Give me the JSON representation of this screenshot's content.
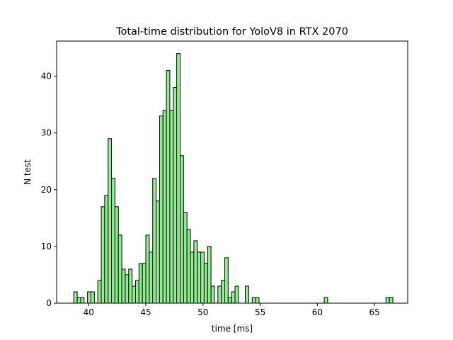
{
  "chart_data": {
    "type": "bar",
    "title": "Total-time distribution for YoloV8 in RTX 2070",
    "xlabel": "time [ms]",
    "ylabel": "N test",
    "xlim": [
      37.2,
      67.9
    ],
    "ylim": [
      0,
      46.2
    ],
    "grid": false,
    "xticks": [
      40,
      45,
      50,
      55,
      60,
      65
    ],
    "yticks": [
      0,
      10,
      20,
      30,
      40
    ],
    "bin_width": 0.3,
    "bar_color": "#90ee90",
    "edge_color": "#000000",
    "series": [
      {
        "x": [
          38.7,
          39.0,
          39.3,
          39.6,
          39.9,
          40.2,
          40.5,
          40.8,
          41.1,
          41.4,
          41.7,
          42.0,
          42.3,
          42.6,
          42.9,
          43.2,
          43.5,
          43.8,
          44.1,
          44.4,
          44.7,
          45.0,
          45.3,
          45.6,
          45.9,
          46.2,
          46.5,
          46.8,
          47.1,
          47.4,
          47.7,
          48.0,
          48.3,
          48.6,
          48.9,
          49.2,
          49.5,
          49.8,
          50.1,
          50.4,
          50.7,
          51.0,
          51.3,
          51.6,
          51.9,
          52.2,
          52.5,
          52.8,
          53.1,
          53.4,
          53.7,
          54.0,
          54.3,
          54.6,
          54.9,
          55.2,
          55.5,
          55.8,
          56.1,
          56.4,
          56.7,
          57.0,
          57.3,
          57.6,
          57.9,
          58.2,
          58.5,
          58.8,
          59.1,
          59.4,
          59.7,
          60.0,
          60.3,
          60.6,
          60.9,
          61.2,
          61.5,
          61.8,
          62.1,
          62.4,
          62.7,
          63.0,
          63.3,
          63.6,
          63.9,
          64.2,
          64.5,
          64.8,
          65.1,
          65.4,
          65.7,
          66.0,
          66.3
        ],
        "values": [
          2,
          1,
          1,
          0,
          2,
          2,
          0,
          4,
          17,
          19,
          29,
          22,
          17,
          12,
          6,
          5,
          6,
          3,
          4,
          7,
          7,
          12,
          9,
          22,
          18,
          33,
          34,
          41,
          34,
          38,
          44,
          26,
          16,
          13,
          9,
          11,
          9,
          9,
          7,
          10,
          3,
          0,
          3,
          4,
          8,
          1,
          2,
          3,
          0,
          0,
          3,
          0,
          1,
          1,
          0,
          0,
          0,
          0,
          0,
          0,
          0,
          0,
          0,
          0,
          0,
          0,
          0,
          0,
          0,
          0,
          0,
          0,
          0,
          1,
          0,
          0,
          0,
          0,
          0,
          0,
          0,
          0,
          0,
          0,
          0,
          0,
          0,
          0,
          0,
          0,
          0,
          1,
          1
        ]
      }
    ]
  }
}
